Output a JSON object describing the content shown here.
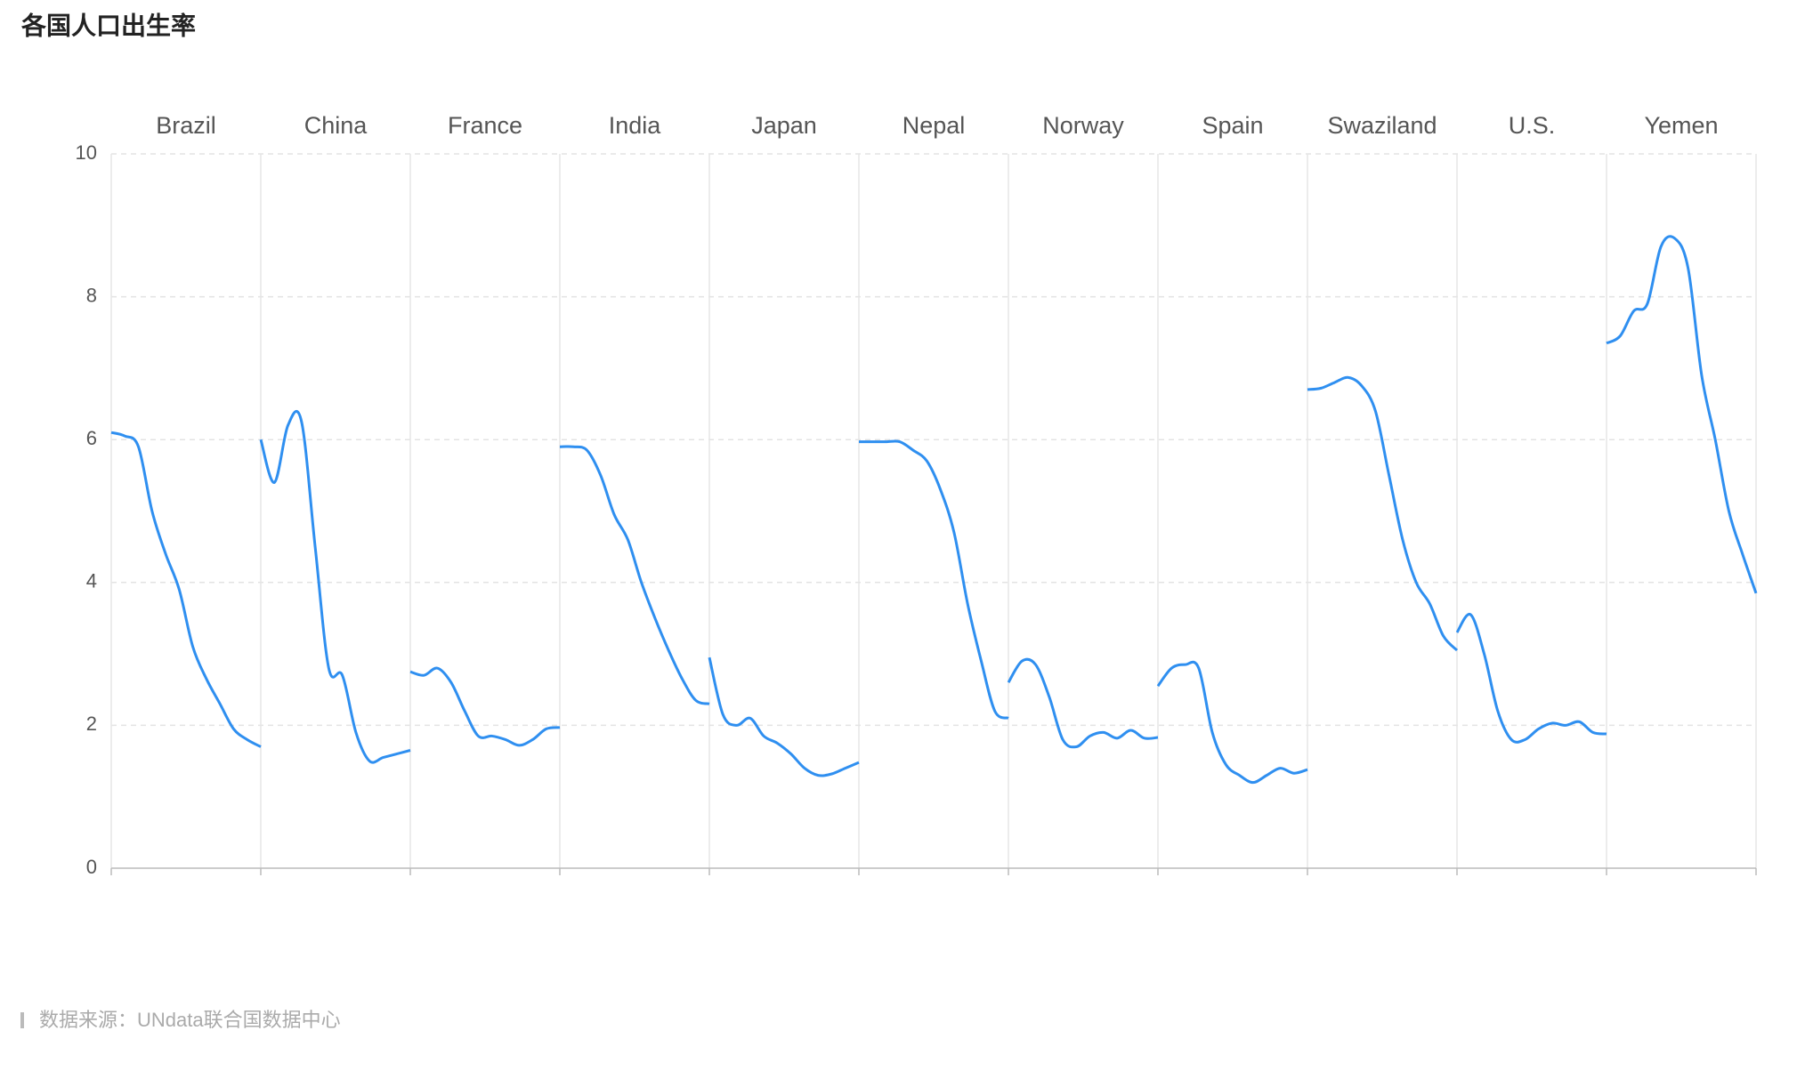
{
  "chart_data": {
    "type": "facet-line",
    "title": "各国人口出生率",
    "source": "数据来源：UNdata联合国数据中心",
    "ylim": [
      0,
      10
    ],
    "yticks": [
      0,
      2,
      4,
      6,
      8,
      10
    ],
    "grid": true,
    "series": [
      {
        "name": "Brazil",
        "color": "#2f8ff0",
        "values": [
          6.1,
          6.05,
          5.9,
          5.0,
          4.4,
          3.9,
          3.1,
          2.65,
          2.3,
          1.95,
          1.8,
          1.7
        ]
      },
      {
        "name": "China",
        "color": "#2f8ff0",
        "values": [
          6.0,
          5.4,
          6.2,
          6.25,
          4.5,
          2.8,
          2.7,
          1.9,
          1.5,
          1.55,
          1.6,
          1.65
        ]
      },
      {
        "name": "France",
        "color": "#2f8ff0",
        "values": [
          2.75,
          2.7,
          2.8,
          2.6,
          2.2,
          1.85,
          1.85,
          1.8,
          1.72,
          1.8,
          1.95,
          1.97
        ]
      },
      {
        "name": "India",
        "color": "#2f8ff0",
        "values": [
          5.9,
          5.9,
          5.85,
          5.5,
          4.95,
          4.6,
          4.0,
          3.5,
          3.05,
          2.65,
          2.35,
          2.3
        ]
      },
      {
        "name": "Japan",
        "color": "#2f8ff0",
        "values": [
          2.95,
          2.15,
          2.0,
          2.1,
          1.85,
          1.75,
          1.6,
          1.4,
          1.3,
          1.32,
          1.4,
          1.48
        ]
      },
      {
        "name": "Nepal",
        "color": "#2f8ff0",
        "values": [
          5.97,
          5.97,
          5.97,
          5.97,
          5.85,
          5.7,
          5.3,
          4.7,
          3.7,
          2.9,
          2.2,
          2.1
        ]
      },
      {
        "name": "Norway",
        "color": "#2f8ff0",
        "values": [
          2.6,
          2.9,
          2.85,
          2.4,
          1.8,
          1.7,
          1.85,
          1.9,
          1.82,
          1.93,
          1.82,
          1.83
        ]
      },
      {
        "name": "Spain",
        "color": "#2f8ff0",
        "values": [
          2.55,
          2.8,
          2.85,
          2.8,
          1.9,
          1.45,
          1.3,
          1.2,
          1.3,
          1.4,
          1.33,
          1.38
        ]
      },
      {
        "name": "Swaziland",
        "color": "#2f8ff0",
        "values": [
          6.7,
          6.72,
          6.8,
          6.87,
          6.75,
          6.4,
          5.5,
          4.6,
          4.0,
          3.7,
          3.25,
          3.05
        ]
      },
      {
        "name": "U.S.",
        "color": "#2f8ff0",
        "values": [
          3.3,
          3.55,
          3.0,
          2.2,
          1.8,
          1.8,
          1.95,
          2.03,
          2.0,
          2.05,
          1.9,
          1.88
        ]
      },
      {
        "name": "Yemen",
        "color": "#2f8ff0",
        "values": [
          7.35,
          7.45,
          7.8,
          7.9,
          8.7,
          8.82,
          8.4,
          6.9,
          6.0,
          5.0,
          4.4,
          3.85
        ]
      }
    ]
  }
}
